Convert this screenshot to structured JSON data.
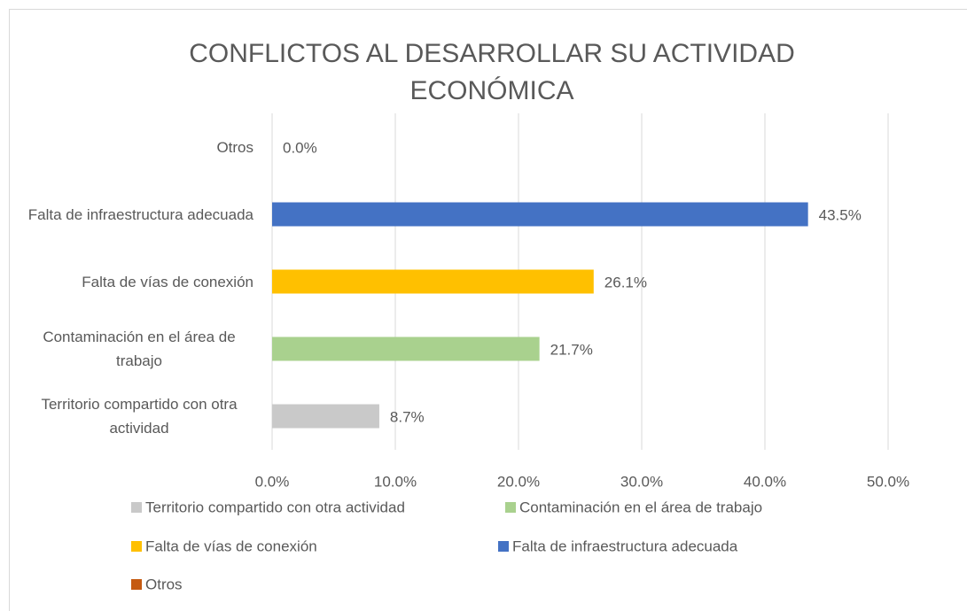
{
  "chart_data": {
    "type": "bar",
    "orientation": "horizontal",
    "title": "CONFLICTOS AL DESARROLLAR SU ACTIVIDAD ECONÓMICA",
    "categories": [
      "Territorio compartido con otra actividad",
      "Contaminación en el área de trabajo",
      "Falta de vías de conexión",
      "Falta de infraestructura adecuada",
      "Otros"
    ],
    "values": [
      8.7,
      21.7,
      26.1,
      43.5,
      0.0
    ],
    "value_labels": [
      "8.7%",
      "21.7%",
      "26.1%",
      "43.5%",
      "0.0%"
    ],
    "colors": [
      "#c9c9c9",
      "#a9d18e",
      "#ffc000",
      "#4472c4",
      "#c55a11"
    ],
    "xlim": [
      0,
      50
    ],
    "xticks": [
      {
        "value": 0,
        "label": "0.0%"
      },
      {
        "value": 10,
        "label": "10.0%"
      },
      {
        "value": 20,
        "label": "20.0%"
      },
      {
        "value": 30,
        "label": "30.0%"
      },
      {
        "value": 40,
        "label": "40.0%"
      },
      {
        "value": 50,
        "label": "50.0%"
      }
    ],
    "grid": true,
    "legend": "bottom"
  }
}
